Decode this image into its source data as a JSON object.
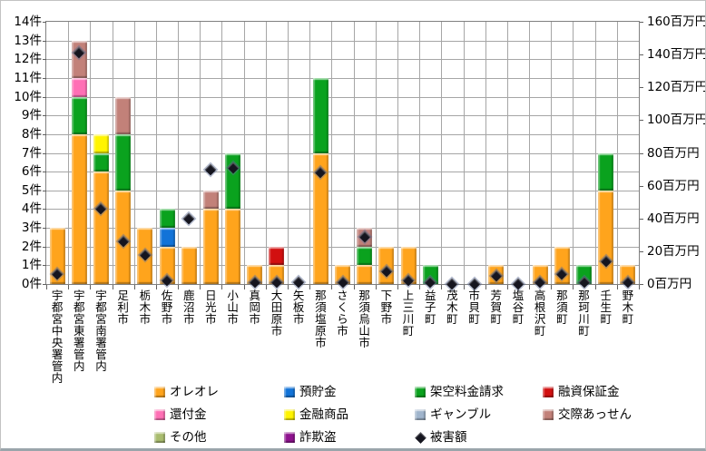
{
  "chart_data": {
    "type": "bar",
    "stacked": true,
    "grid": "both",
    "legend_position": "bottom",
    "categories": [
      "宇都宮中央署管内",
      "宇都宮東署管内",
      "宇都宮南署管内",
      "足利市",
      "栃木市",
      "佐野市",
      "鹿沼市",
      "日光市",
      "小山市",
      "真岡市",
      "大田原市",
      "矢板市",
      "那須塩原市",
      "さくら市",
      "那須烏山市",
      "下野市",
      "上三川町",
      "益子町",
      "茂木町",
      "市貝町",
      "芳賀町",
      "塩谷町",
      "高根沢町",
      "那須町",
      "那珂川町",
      "壬生町",
      "野木町"
    ],
    "series": [
      {
        "name": "オレオレ",
        "color": "#FFA41C",
        "values": [
          3,
          8,
          6,
          5,
          3,
          2,
          2,
          4,
          4,
          1,
          1,
          0,
          7,
          1,
          1,
          2,
          2,
          0,
          0,
          0,
          1,
          0,
          1,
          2,
          0,
          5,
          1
        ]
      },
      {
        "name": "預貯金",
        "color": "#1273D8",
        "values": [
          0,
          0,
          0,
          0,
          0,
          1,
          0,
          0,
          0,
          0,
          0,
          0,
          0,
          0,
          0,
          0,
          0,
          0,
          0,
          0,
          0,
          0,
          0,
          0,
          0,
          0,
          0
        ]
      },
      {
        "name": "架空料金請求",
        "color": "#0AA21E",
        "values": [
          0,
          2,
          1,
          3,
          0,
          1,
          0,
          0,
          3,
          0,
          0,
          0,
          4,
          0,
          1,
          0,
          0,
          1,
          0,
          0,
          0,
          0,
          0,
          0,
          1,
          2,
          0
        ]
      },
      {
        "name": "融資保証金",
        "color": "#D21010",
        "values": [
          0,
          0,
          0,
          0,
          0,
          0,
          0,
          0,
          0,
          0,
          1,
          0,
          0,
          0,
          0,
          0,
          0,
          0,
          0,
          0,
          0,
          0,
          0,
          0,
          0,
          0,
          0
        ]
      },
      {
        "name": "還付金",
        "color": "#FF6FB5",
        "values": [
          0,
          1,
          0,
          0,
          0,
          0,
          0,
          0,
          0,
          0,
          0,
          0,
          0,
          0,
          0,
          0,
          0,
          0,
          0,
          0,
          0,
          0,
          0,
          0,
          0,
          0,
          0
        ]
      },
      {
        "name": "金融商品",
        "color": "#FFF400",
        "values": [
          0,
          0,
          1,
          0,
          0,
          0,
          0,
          0,
          0,
          0,
          0,
          0,
          0,
          0,
          0,
          0,
          0,
          0,
          0,
          0,
          0,
          0,
          0,
          0,
          0,
          0,
          0
        ]
      },
      {
        "name": "ギャンブル",
        "color": "#9FB4CC",
        "values": [
          0,
          0,
          0,
          0,
          0,
          0,
          0,
          0,
          0,
          0,
          0,
          0,
          0,
          0,
          0,
          0,
          0,
          0,
          0,
          0,
          0,
          0,
          0,
          0,
          0,
          0,
          0
        ]
      },
      {
        "name": "交際あっせん",
        "color": "#C28179",
        "values": [
          0,
          2,
          0,
          2,
          0,
          0,
          0,
          1,
          0,
          0,
          0,
          0,
          0,
          0,
          1,
          0,
          0,
          0,
          0,
          0,
          0,
          0,
          0,
          0,
          0,
          0,
          0
        ]
      },
      {
        "name": "その他",
        "color": "#A9BC6E",
        "values": [
          0,
          0,
          0,
          0,
          0,
          0,
          0,
          0,
          0,
          0,
          0,
          0,
          0,
          0,
          0,
          0,
          0,
          0,
          0,
          0,
          0,
          0,
          0,
          0,
          0,
          0,
          0
        ]
      },
      {
        "name": "詐欺盗",
        "color": "#8E128E",
        "values": [
          0,
          0,
          0,
          0,
          0,
          0,
          0,
          0,
          0,
          0,
          0,
          0,
          0,
          0,
          0,
          0,
          0,
          0,
          0,
          0,
          0,
          0,
          0,
          0,
          0,
          0,
          0
        ]
      }
    ],
    "marker_series": {
      "name": "被害額",
      "color": "#15151f",
      "axis": "right",
      "values": [
        6,
        141,
        46,
        26,
        18,
        2,
        40,
        70,
        71,
        1,
        1,
        1,
        68,
        1,
        29,
        8,
        2,
        1,
        0,
        0,
        5,
        0,
        1,
        6,
        1,
        14,
        1
      ]
    },
    "left_axis": {
      "min": 0,
      "max": 14,
      "step": 1,
      "suffix": "件"
    },
    "right_axis": {
      "min": 0,
      "max": 160,
      "step": 20,
      "suffix": "百万円"
    },
    "legend": [
      {
        "label": "オレオレ",
        "color": "#FFA41C",
        "marker": "square"
      },
      {
        "label": "預貯金",
        "color": "#1273D8",
        "marker": "square"
      },
      {
        "label": "架空料金請求",
        "color": "#0AA21E",
        "marker": "square"
      },
      {
        "label": "融資保証金",
        "color": "#D21010",
        "marker": "square"
      },
      {
        "label": "還付金",
        "color": "#FF6FB5",
        "marker": "square"
      },
      {
        "label": "金融商品",
        "color": "#FFF400",
        "marker": "square"
      },
      {
        "label": "ギャンブル",
        "color": "#9FB4CC",
        "marker": "square"
      },
      {
        "label": "交際あっせん",
        "color": "#C28179",
        "marker": "square"
      },
      {
        "label": "その他",
        "color": "#A9BC6E",
        "marker": "square"
      },
      {
        "label": "詐欺盗",
        "color": "#8E128E",
        "marker": "square"
      },
      {
        "label": "被害額",
        "color": "#15151f",
        "marker": "diamond"
      }
    ]
  }
}
